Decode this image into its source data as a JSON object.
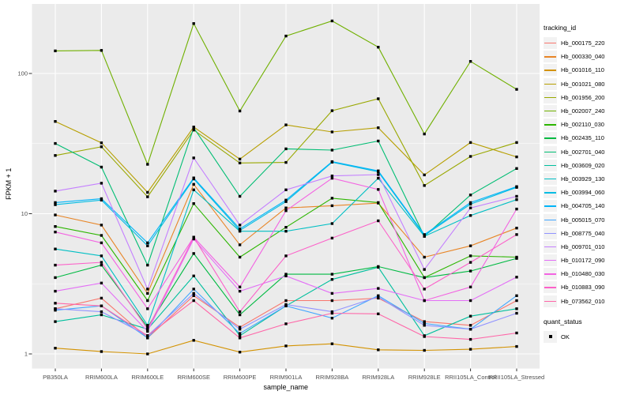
{
  "chart_data": {
    "type": "line",
    "xlabel": "sample_name",
    "ylabel": "FPKM + 1",
    "y_scale": "log10",
    "y_ticks": [
      1,
      10,
      100
    ],
    "y_minor_ticks": [
      3.1623,
      31.623
    ],
    "ylim": [
      0.79,
      310
    ],
    "panel_bg": "#EBEBEB",
    "grid_color": "#FFFFFF",
    "point_color": "#000000",
    "tick_text_color": "#4D4D4D",
    "categories": [
      "PB350LA",
      "RRIM600LA",
      "RRIM600LE",
      "RRIM600SE",
      "RRIM600PE",
      "RRIM901LA",
      "RRIM928BA",
      "RRIM928LA",
      "RRIM928LE",
      "RRII105LA_Control",
      "RRII105LA_Stressed"
    ],
    "series": [
      {
        "name": "Hb_000175_220",
        "color": "#F8766D",
        "values": [
          2.1,
          2.5,
          1.3,
          2.6,
          1.55,
          2.4,
          2.4,
          2.5,
          1.7,
          1.6,
          2.4
        ]
      },
      {
        "name": "Hb_000330_040",
        "color": "#E88526",
        "values": [
          9.8,
          8.3,
          2.7,
          16.2,
          6.0,
          11.0,
          11.4,
          11.9,
          4.9,
          5.9,
          7.9
        ]
      },
      {
        "name": "Hb_001016_110",
        "color": "#D39200",
        "values": [
          1.1,
          1.04,
          1.0,
          1.25,
          1.03,
          1.14,
          1.18,
          1.07,
          1.06,
          1.08,
          1.13
        ]
      },
      {
        "name": "Hb_001021_080",
        "color": "#B79F00",
        "values": [
          45.5,
          32,
          14.2,
          41.5,
          24.5,
          43,
          38.3,
          41,
          18.9,
          32.2,
          25.4
        ]
      },
      {
        "name": "Hb_001956_200",
        "color": "#99A800",
        "values": [
          26,
          30,
          13.2,
          39.5,
          23,
          23.2,
          54.3,
          66,
          15.9,
          25.6,
          32.2
        ]
      },
      {
        "name": "Hb_002007_240",
        "color": "#70B000",
        "values": [
          145,
          146,
          22.5,
          227,
          54,
          185,
          237,
          154,
          37,
          122,
          77
        ]
      },
      {
        "name": "Hb_002110_030",
        "color": "#2CB600",
        "values": [
          8.1,
          7.0,
          2.4,
          11.8,
          4.9,
          8.0,
          12.9,
          12.0,
          3.5,
          5.0,
          4.9
        ]
      },
      {
        "name": "Hb_002435_110",
        "color": "#00BA42",
        "values": [
          3.5,
          4.3,
          1.55,
          5.2,
          1.9,
          3.7,
          3.7,
          4.2,
          3.5,
          3.9,
          4.8
        ]
      },
      {
        "name": "Hb_002701_040",
        "color": "#00BD73",
        "values": [
          31.7,
          21.5,
          4.3,
          41,
          13.3,
          29,
          28.4,
          33,
          6.9,
          13.6,
          21
        ]
      },
      {
        "name": "Hb_003609_020",
        "color": "#00BF9E",
        "values": [
          1.7,
          1.9,
          1.5,
          3.6,
          1.35,
          2.2,
          3.4,
          4.15,
          1.35,
          1.86,
          2.1
        ]
      },
      {
        "name": "Hb_003929_130",
        "color": "#00BFC4",
        "values": [
          5.6,
          5.0,
          1.6,
          14.8,
          7.5,
          7.5,
          8.5,
          17.9,
          6.9,
          9.7,
          12.6
        ]
      },
      {
        "name": "Hb_003994_060",
        "color": "#00BCE3",
        "values": [
          11.6,
          12.5,
          5.9,
          17.7,
          7.6,
          12.2,
          23.3,
          19.9,
          7.0,
          11.7,
          15.4
        ]
      },
      {
        "name": "Hb_004705_140",
        "color": "#00B4F9",
        "values": [
          12.0,
          12.8,
          6.2,
          18.0,
          7.8,
          12.5,
          23.5,
          20.2,
          7.1,
          12.0,
          15.6
        ]
      },
      {
        "name": "Hb_005015_070",
        "color": "#41A6FF",
        "values": [
          2.05,
          2.2,
          1.3,
          2.9,
          1.4,
          2.2,
          1.8,
          2.6,
          1.65,
          1.5,
          2.6
        ]
      },
      {
        "name": "Hb_008775_040",
        "color": "#9193FF",
        "values": [
          2.1,
          2.0,
          1.35,
          2.7,
          1.5,
          2.25,
          2.0,
          2.55,
          1.6,
          1.5,
          1.95
        ]
      },
      {
        "name": "Hb_009701_010",
        "color": "#C47FFF",
        "values": [
          14.5,
          16.5,
          2.9,
          25,
          8.3,
          14.8,
          18.6,
          19.0,
          4.0,
          11.0,
          13.3
        ]
      },
      {
        "name": "Hb_010172_090",
        "color": "#E36EF6",
        "values": [
          2.8,
          3.2,
          1.45,
          6.6,
          2.8,
          3.6,
          2.7,
          2.93,
          2.4,
          2.4,
          3.53
        ]
      },
      {
        "name": "Hb_010480_030",
        "color": "#F363E2",
        "values": [
          7.4,
          6.2,
          2.1,
          6.8,
          3.0,
          10.5,
          17.9,
          14.9,
          2.4,
          3.0,
          10.8
        ]
      },
      {
        "name": "Hb_010883_090",
        "color": "#FC61C9",
        "values": [
          4.3,
          4.5,
          1.5,
          6.8,
          2.0,
          5.0,
          6.7,
          8.9,
          2.9,
          4.5,
          7.1
        ]
      },
      {
        "name": "Hb_073562_010",
        "color": "#FF66A8",
        "values": [
          2.3,
          2.2,
          1.35,
          2.4,
          1.3,
          1.64,
          1.95,
          1.93,
          1.33,
          1.27,
          1.41
        ]
      }
    ]
  },
  "legend": {
    "tracking_title": "tracking_id",
    "quant_title": "quant_status",
    "quant_items": [
      {
        "label": "OK"
      }
    ]
  }
}
